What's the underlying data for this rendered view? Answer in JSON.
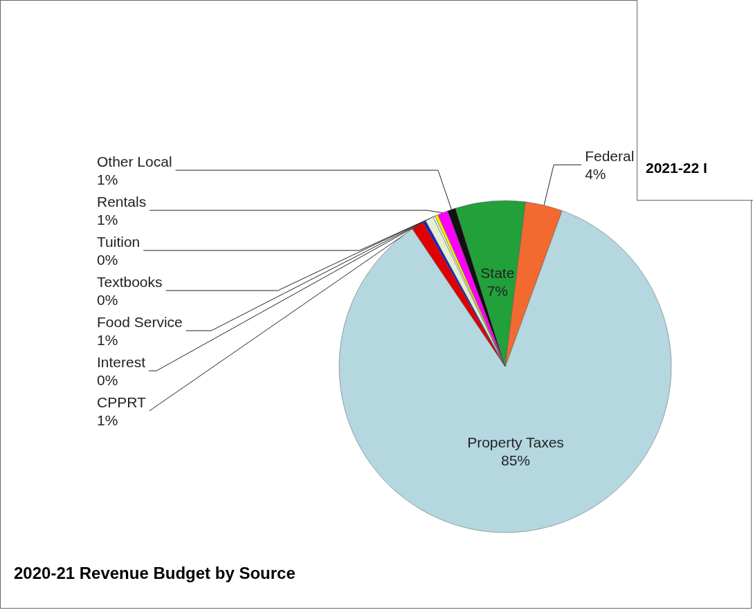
{
  "chart_data": {
    "type": "pie",
    "title": "2020-21 Revenue Budget by Source",
    "categories": [
      "Property Taxes",
      "CPPRT",
      "Interest",
      "Food Service",
      "Textbooks",
      "Tuition",
      "Rentals",
      "Other Local",
      "State",
      "Federal"
    ],
    "values": [
      85.0,
      1.2,
      0.3,
      0.8,
      0.2,
      0.3,
      1.0,
      0.8,
      6.8,
      3.6
    ],
    "value_labels": [
      "85%",
      "1%",
      "0%",
      "1%",
      "0%",
      "0%",
      "1%",
      "1%",
      "7%",
      "4%"
    ],
    "colors": [
      "#b4d7e0",
      "#e00000",
      "#2020c0",
      "#e0f0d0",
      "#f4f4f4",
      "#f0f000",
      "#ff00ff",
      "#111111",
      "#22a03a",
      "#f26a30"
    ],
    "legend": false,
    "annotations": [
      "2021-22 I"
    ]
  }
}
